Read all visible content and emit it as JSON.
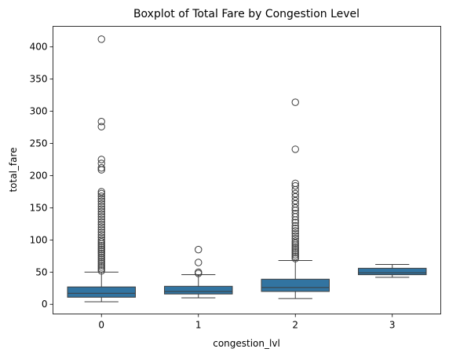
{
  "chart_data": {
    "type": "box",
    "title": "Boxplot of Total Fare by Congestion Level",
    "xlabel": "congestion_lvl",
    "ylabel": "total_fare",
    "ylim": [
      -15,
      432
    ],
    "yticks": [
      0,
      50,
      100,
      150,
      200,
      250,
      300,
      350,
      400
    ],
    "grid": false,
    "colors": {
      "box": "#3274a1",
      "outline": "#3d3d3d",
      "frame": "#000000"
    },
    "boxes": [
      {
        "category": "0",
        "whisker_low": 4,
        "q1": 11,
        "median": 17,
        "q3": 27,
        "whisker_high": 50,
        "outliers": [
          412,
          284,
          276,
          225,
          219,
          212,
          209,
          175,
          172,
          168,
          164,
          160,
          156,
          152,
          148,
          144,
          140,
          136,
          132,
          128,
          124,
          120,
          116,
          112,
          108,
          104,
          100,
          97,
          94,
          91,
          88,
          85,
          82,
          79,
          76,
          73,
          70,
          67,
          64,
          61,
          58,
          55,
          52
        ]
      },
      {
        "category": "1",
        "whisker_low": 10,
        "q1": 16,
        "median": 20,
        "q3": 28,
        "whisker_high": 46,
        "outliers": [
          85,
          65,
          50,
          48
        ]
      },
      {
        "category": "2",
        "whisker_low": 9,
        "q1": 20,
        "median": 26,
        "q3": 39,
        "whisker_high": 68,
        "outliers": [
          314,
          241,
          188,
          184,
          178,
          172,
          167,
          161,
          156,
          150,
          146,
          141,
          136,
          131,
          127,
          122,
          118,
          114,
          110,
          106,
          102,
          98,
          95,
          92,
          89,
          86,
          83,
          80,
          77,
          74,
          71
        ]
      },
      {
        "category": "3",
        "whisker_low": 42,
        "q1": 46,
        "median": 49,
        "q3": 56,
        "whisker_high": 62,
        "outliers": []
      }
    ]
  }
}
